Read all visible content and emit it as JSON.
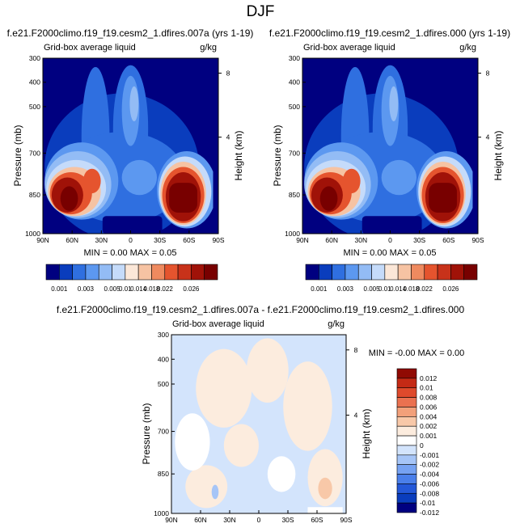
{
  "page_title": "DJF",
  "colors": {
    "scale12": [
      "#000080",
      "#0a3dbd",
      "#2f6fe0",
      "#5c98f0",
      "#93bcf5",
      "#c5dbfa",
      "#fbe7d8",
      "#f6c3a3",
      "#ef8a5f",
      "#e5542e",
      "#c8321a",
      "#a01208",
      "#780000"
    ],
    "diff": [
      "#000080",
      "#0a3dbd",
      "#2458d8",
      "#4a7fea",
      "#76a2f2",
      "#a6c5f7",
      "#d3e4fc",
      "#ffffff",
      "#fcecde",
      "#f8c8a8",
      "#f2a07a",
      "#ea7150",
      "#de4a2c",
      "#c42a15",
      "#900a03"
    ]
  },
  "chart_data": [
    {
      "type": "heatmap",
      "plot": "top-left",
      "title": "f.e21.F2000climo.f19_f19.cesm2_1.dfires.007a (yrs 1-19)",
      "left_label": "Grid-box average liquid",
      "units": "g/kg",
      "xlabel": "",
      "ylabel": "Pressure (mb)",
      "y2label": "Height (km)",
      "x_ticks": [
        "90N",
        "60N",
        "30N",
        "0",
        "30S",
        "60S",
        "90S"
      ],
      "y_ticks": [
        "300",
        "400",
        "500",
        "700",
        "850",
        "1000"
      ],
      "y2_ticks": [
        "8",
        "4"
      ],
      "ylim": [
        300,
        1000
      ],
      "min_max_text": "MIN =  0.00  MAX =  0.05",
      "colorbar_ticks": [
        "0.001",
        "0.003",
        "0.005",
        "0.01",
        "0.014",
        "0.018",
        "0.022",
        "0.026"
      ]
    },
    {
      "type": "heatmap",
      "plot": "top-right",
      "title": "f.e21.F2000climo.f19_f19.cesm2_1.dfires.000 (yrs 1-19)",
      "left_label": "Grid-box average liquid",
      "units": "g/kg",
      "xlabel": "",
      "ylabel": "Pressure (mb)",
      "y2label": "Height (km)",
      "x_ticks": [
        "90N",
        "60N",
        "30N",
        "0",
        "30S",
        "60S",
        "90S"
      ],
      "y_ticks": [
        "300",
        "400",
        "500",
        "700",
        "850",
        "1000"
      ],
      "y2_ticks": [
        "8",
        "4"
      ],
      "ylim": [
        300,
        1000
      ],
      "min_max_text": "MIN =  0.00  MAX =  0.05",
      "colorbar_ticks": [
        "0.001",
        "0.003",
        "0.005",
        "0.01",
        "0.014",
        "0.018",
        "0.022",
        "0.026"
      ]
    },
    {
      "type": "heatmap",
      "plot": "difference",
      "title": "f.e21.F2000climo.f19_f19.cesm2_1.dfires.007a - f.e21.F2000climo.f19_f19.cesm2_1.dfires.000",
      "left_label": "Grid-box average liquid",
      "units": "g/kg",
      "ylabel": "Pressure (mb)",
      "y2label": "Height (km)",
      "x_ticks": [
        "90N",
        "60N",
        "30N",
        "0",
        "30S",
        "60S",
        "90S"
      ],
      "y_ticks": [
        "300",
        "400",
        "500",
        "700",
        "850",
        "1000"
      ],
      "y2_ticks": [
        "8",
        "4"
      ],
      "ylim": [
        300,
        1000
      ],
      "min_max_text": "MIN = -0.00  MAX =  0.00",
      "colorbar_ticks": [
        "0.012",
        "0.01",
        "0.008",
        "0.006",
        "0.004",
        "0.002",
        "0.001",
        "0",
        "-0.001",
        "-0.002",
        "-0.004",
        "-0.006",
        "-0.008",
        "-0.01",
        "-0.012"
      ]
    }
  ]
}
